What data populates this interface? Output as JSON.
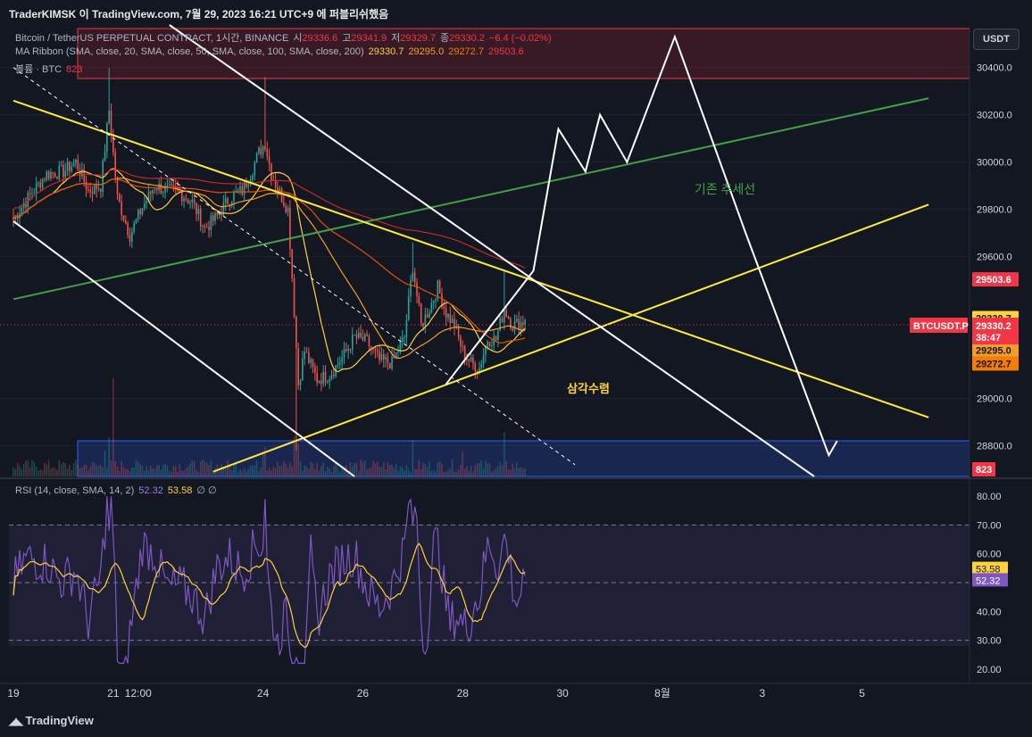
{
  "header": {
    "title": "TraderKIMSK 이 TradingView.com, 7월 29, 2023 16:21 UTC+9 에 퍼블리쉬했음"
  },
  "legend": {
    "symbol_line": "Bitcoin / TetherUS PERPETUAL CONTRACT, 1시간, BINANCE",
    "o_label": "시",
    "o_value": "29336.6",
    "h_label": "고",
    "h_value": "29341.9",
    "l_label": "저",
    "l_value": "29329.7",
    "c_label": "종",
    "c_value": "29330.2",
    "change": "−6.4 (−0.02%)",
    "ma_line": "MA Ribbon (SMA, close, 20, SMA, close, 50, SMA, close, 100, SMA, close, 200)",
    "ma_values": [
      "29330.7",
      "29295.0",
      "29272.7",
      "29503.6"
    ],
    "volume_label": "볼륨 · BTC",
    "volume_value": "823"
  },
  "currency_button": "USDT",
  "price_axis": {
    "ticks": [
      {
        "label": "30400.0",
        "value": 30400
      },
      {
        "label": "30200.0",
        "value": 30200
      },
      {
        "label": "30000.0",
        "value": 30000
      },
      {
        "label": "29800.0",
        "value": 29800
      },
      {
        "label": "29600.0",
        "value": 29600
      },
      {
        "label": "29000.0",
        "value": 29000
      },
      {
        "label": "28800.0",
        "value": 28800
      }
    ],
    "tags": [
      {
        "label": "29503.6",
        "value": 29503.6,
        "color": "#f23645",
        "text": "#ffffff"
      },
      {
        "label": "29330.7",
        "value": 29340,
        "color": "#ffd13b",
        "text": "#131722"
      },
      {
        "label": "29295.0",
        "value": 29205,
        "color": "#f59d2a",
        "text": "#131722"
      },
      {
        "label": "29272.7",
        "value": 29148,
        "color": "#f57c00",
        "text": "#131722"
      }
    ],
    "current": {
      "symbol": "BTCUSDT.P",
      "price": "29330.2",
      "countdown": "38:47",
      "color": "#f23645"
    },
    "volume_tag": {
      "label": "823",
      "color": "#f23645"
    }
  },
  "rsi": {
    "legend_label": "RSI (14, close, SMA, 14, 2)",
    "rsi_value": "52.32",
    "ma_value": "53.58",
    "extra": "∅ ∅",
    "ticks": [
      "80.00",
      "70.00",
      "60.00",
      "50.00",
      "40.00",
      "30.00",
      "20.00"
    ],
    "tag_ma": "53.58",
    "tag_rsi": "52.32"
  },
  "time_axis": {
    "labels": [
      {
        "label": "19",
        "idx": 0
      },
      {
        "label": "21",
        "idx": 48
      },
      {
        "label": "12:00",
        "idx": 60
      },
      {
        "label": "24",
        "idx": 120
      },
      {
        "label": "26",
        "idx": 168
      },
      {
        "label": "28",
        "idx": 216
      },
      {
        "label": "30",
        "idx": 264
      },
      {
        "label": "8월",
        "idx": 312
      },
      {
        "label": "3",
        "idx": 360
      },
      {
        "label": "5",
        "idx": 408
      }
    ]
  },
  "annotations": {
    "trend_label": "기존 추세선",
    "triangle_label": "삼각수렴"
  },
  "footer": {
    "brand": "TradingView"
  },
  "chart_data": {
    "type": "candlestick",
    "timeframe": "1시간",
    "ylim": [
      28670,
      30580
    ],
    "rsi_ylim": [
      15,
      85
    ],
    "colors": {
      "up": "#26a69a",
      "down": "#ef5350",
      "ma20": "#ffd13b",
      "ma50": "#f59d2a",
      "ma100": "#e65100",
      "ma200": "#c62828",
      "rsi": "#7e57c2",
      "rsi_ma": "#ffd13b"
    },
    "close_anchors": [
      [
        0,
        29760
      ],
      [
        8,
        29860
      ],
      [
        16,
        29950
      ],
      [
        24,
        29960
      ],
      [
        30,
        30000
      ],
      [
        36,
        29880
      ],
      [
        42,
        29900
      ],
      [
        46,
        30220
      ],
      [
        50,
        29850
      ],
      [
        56,
        29690
      ],
      [
        62,
        29810
      ],
      [
        68,
        29900
      ],
      [
        74,
        29880
      ],
      [
        80,
        29870
      ],
      [
        86,
        29830
      ],
      [
        92,
        29720
      ],
      [
        98,
        29770
      ],
      [
        104,
        29850
      ],
      [
        110,
        29880
      ],
      [
        114,
        29950
      ],
      [
        118,
        30040
      ],
      [
        121,
        30080
      ],
      [
        124,
        29950
      ],
      [
        128,
        29870
      ],
      [
        132,
        29800
      ],
      [
        135,
        29370
      ],
      [
        137,
        29060
      ],
      [
        140,
        29200
      ],
      [
        146,
        29080
      ],
      [
        152,
        29100
      ],
      [
        158,
        29170
      ],
      [
        164,
        29260
      ],
      [
        170,
        29240
      ],
      [
        176,
        29160
      ],
      [
        182,
        29150
      ],
      [
        188,
        29260
      ],
      [
        192,
        29560
      ],
      [
        196,
        29310
      ],
      [
        200,
        29380
      ],
      [
        204,
        29470
      ],
      [
        208,
        29360
      ],
      [
        212,
        29310
      ],
      [
        216,
        29200
      ],
      [
        220,
        29150
      ],
      [
        224,
        29130
      ],
      [
        228,
        29250
      ],
      [
        232,
        29250
      ],
      [
        236,
        29380
      ],
      [
        240,
        29310
      ],
      [
        244,
        29320
      ],
      [
        246,
        29330.2
      ]
    ],
    "overlays": {
      "trend_line_green": [
        [
          0,
          29420
        ],
        [
          440,
          30270
        ]
      ],
      "resistance_yellow": [
        [
          0,
          30260
        ],
        [
          440,
          28920
        ]
      ],
      "support_yellow": [
        [
          96,
          28690
        ],
        [
          440,
          29820
        ]
      ],
      "dashed_white": [
        [
          0,
          30400
        ],
        [
          270,
          28720
        ]
      ],
      "channel_upper_white": [
        [
          75,
          30580
        ],
        [
          385,
          28670
        ]
      ],
      "channel_lower_white": [
        [
          0,
          29750
        ],
        [
          164,
          28670
        ]
      ],
      "projection_white": [
        [
          208,
          29060
        ],
        [
          250,
          29540
        ],
        [
          262,
          30140
        ],
        [
          275,
          29960
        ],
        [
          282,
          30200
        ],
        [
          295,
          30000
        ],
        [
          318,
          30530
        ],
        [
          352,
          29700
        ],
        [
          392,
          28760
        ],
        [
          396,
          28820
        ]
      ]
    }
  }
}
